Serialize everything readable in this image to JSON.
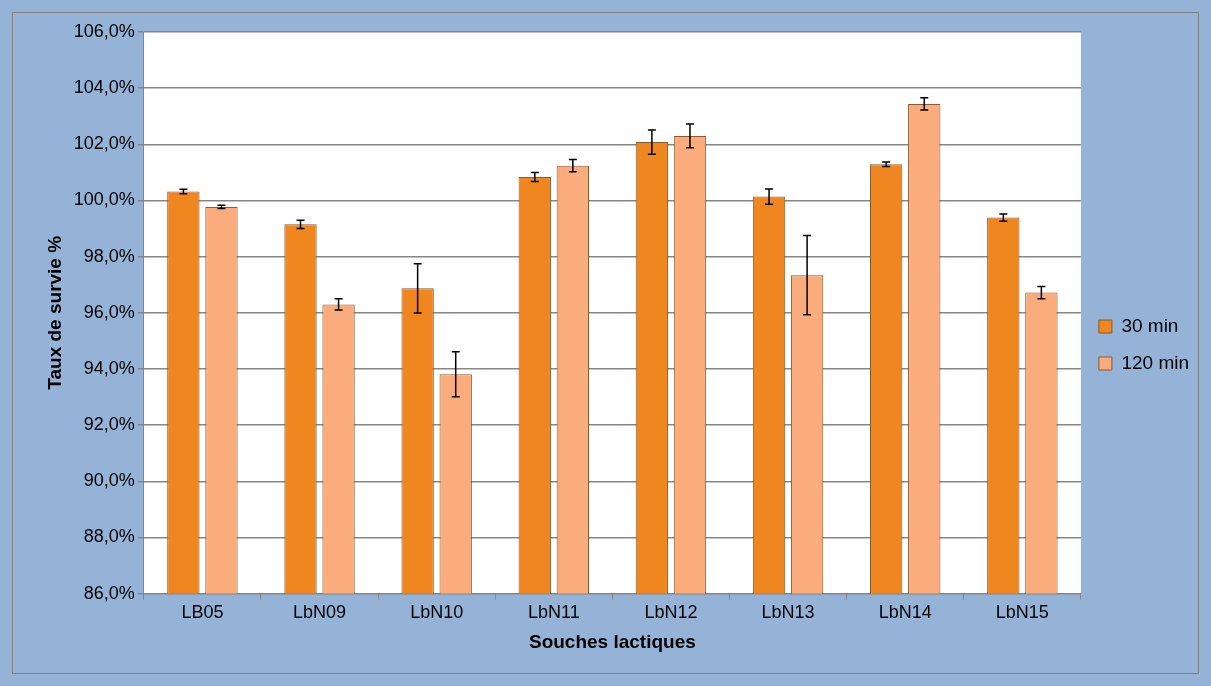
{
  "chart_data": {
    "type": "bar",
    "xlabel": "Souches lactiques",
    "ylabel": "Taux de survie %",
    "categories": [
      "LB05",
      "LbN09",
      "LbN10",
      "LbN11",
      "LbN12",
      "LbN13",
      "LbN14",
      "LbN15"
    ],
    "series": [
      {
        "name": "30 min",
        "color": "#f0861f",
        "values": [
          100.32,
          99.15,
          96.87,
          100.84,
          102.08,
          100.14,
          101.29,
          99.39
        ],
        "errors": [
          0.08,
          0.15,
          0.88,
          0.16,
          0.43,
          0.27,
          0.08,
          0.13
        ]
      },
      {
        "name": "120 min",
        "color": "#fbac7c",
        "values": [
          99.77,
          96.3,
          93.81,
          101.24,
          102.3,
          97.34,
          103.44,
          96.72
        ],
        "errors": [
          0.06,
          0.2,
          0.8,
          0.22,
          0.42,
          1.41,
          0.22,
          0.22
        ]
      }
    ],
    "ylim": [
      86,
      106
    ],
    "yticks": [
      {
        "value": 86,
        "label": "86,0%"
      },
      {
        "value": 88,
        "label": "88,0%"
      },
      {
        "value": 90,
        "label": "90,0%"
      },
      {
        "value": 92,
        "label": "92,0%"
      },
      {
        "value": 94,
        "label": "94,0%"
      },
      {
        "value": 96,
        "label": "96,0%"
      },
      {
        "value": 98,
        "label": "98,0%"
      },
      {
        "value": 100,
        "label": "100,0%"
      },
      {
        "value": 102,
        "label": "102,0%"
      },
      {
        "value": 104,
        "label": "104,0%"
      },
      {
        "value": 106,
        "label": "106,0%"
      }
    ],
    "grid": "y",
    "legend": "right"
  }
}
